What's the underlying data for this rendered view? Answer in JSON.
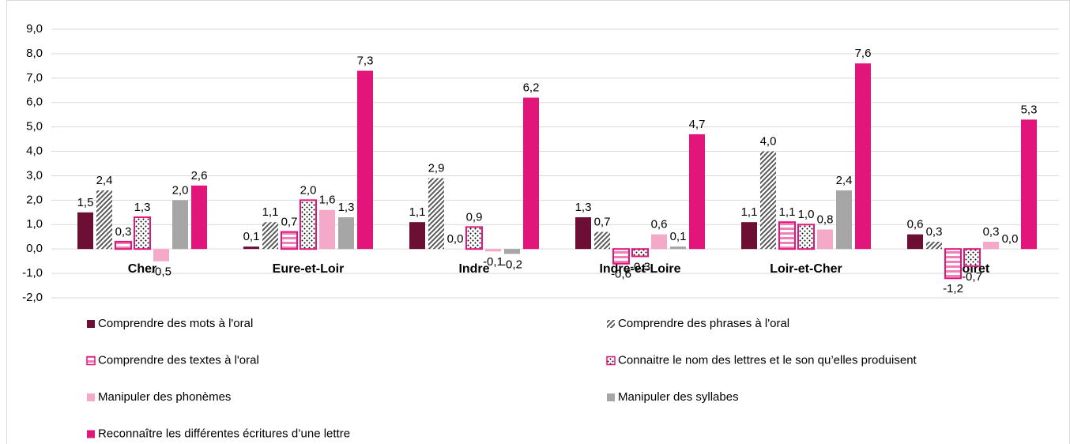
{
  "chart_data": {
    "type": "bar",
    "categories": [
      "Cher",
      "Eure-et-Loir",
      "Indre",
      "Indre-et-Loire",
      "Loir-et-Cher",
      "Loiret"
    ],
    "series": [
      {
        "name": "Comprendre des mots à l'oral",
        "color": "#6d0e34",
        "pattern": "solid",
        "values": [
          1.5,
          0.1,
          1.1,
          1.3,
          1.1,
          0.6
        ],
        "value_labels": [
          "1,5",
          "0,1",
          "1,1",
          "1,3",
          "1,1",
          "0,6"
        ]
      },
      {
        "name": "Comprendre des phrases à l'oral",
        "color": "#595959",
        "pattern": "hatch",
        "values": [
          2.4,
          1.1,
          2.9,
          0.7,
          4.0,
          0.3
        ],
        "value_labels": [
          "2,4",
          "1,1",
          "2,9",
          "0,7",
          "4,0",
          "0,3"
        ]
      },
      {
        "name": "Comprendre des textes à l'oral",
        "color": "#e2157a",
        "pattern": "stripes",
        "values": [
          0.3,
          0.7,
          0.0,
          -0.6,
          1.1,
          -1.2
        ],
        "value_labels": [
          "0,3",
          "0,7",
          "0,0",
          "-0,6",
          "1,1",
          "-1,2"
        ]
      },
      {
        "name": "Connaitre le nom des lettres et le son qu’elles produisent",
        "color": "#e2157a",
        "pattern": "dots",
        "values": [
          1.3,
          2.0,
          0.9,
          -0.3,
          1.0,
          -0.7
        ],
        "value_labels": [
          "1,3",
          "2,0",
          "0,9",
          "-0,3",
          "1,0",
          "-0,7"
        ]
      },
      {
        "name": "Manipuler des phonèmes",
        "color": "#f5a9c9",
        "pattern": "solid",
        "values": [
          -0.5,
          1.6,
          -0.1,
          0.6,
          0.8,
          0.3
        ],
        "value_labels": [
          "-0,5",
          "1,6",
          "-0,1",
          "0,6",
          "0,8",
          "0,3"
        ]
      },
      {
        "name": "Manipuler des syllabes",
        "color": "#a6a6a6",
        "pattern": "solid",
        "values": [
          2.0,
          1.3,
          -0.2,
          0.1,
          2.4,
          0.0
        ],
        "value_labels": [
          "2,0",
          "1,3",
          "-0,2",
          "0,1",
          "2,4",
          "0,0"
        ]
      },
      {
        "name": "Reconnaître les différentes écritures d’une lettre",
        "color": "#e2157a",
        "pattern": "solid",
        "values": [
          2.6,
          7.3,
          6.2,
          4.7,
          7.6,
          5.3
        ],
        "value_labels": [
          "2,6",
          "7,3",
          "6,2",
          "4,7",
          "7,6",
          "5,3"
        ]
      }
    ],
    "ylim": [
      -2,
      9
    ],
    "yticks": [
      {
        "value": -2,
        "label": "-2,0"
      },
      {
        "value": -1,
        "label": "-1,0"
      },
      {
        "value": 0,
        "label": "0,0"
      },
      {
        "value": 1,
        "label": "1,0"
      },
      {
        "value": 2,
        "label": "2,0"
      },
      {
        "value": 3,
        "label": "3,0"
      },
      {
        "value": 4,
        "label": "4,0"
      },
      {
        "value": 5,
        "label": "5,0"
      },
      {
        "value": 6,
        "label": "6,0"
      },
      {
        "value": 7,
        "label": "7,0"
      },
      {
        "value": 8,
        "label": "8,0"
      },
      {
        "value": 9,
        "label": "9,0"
      }
    ],
    "grid": true,
    "legend": "bottom"
  }
}
